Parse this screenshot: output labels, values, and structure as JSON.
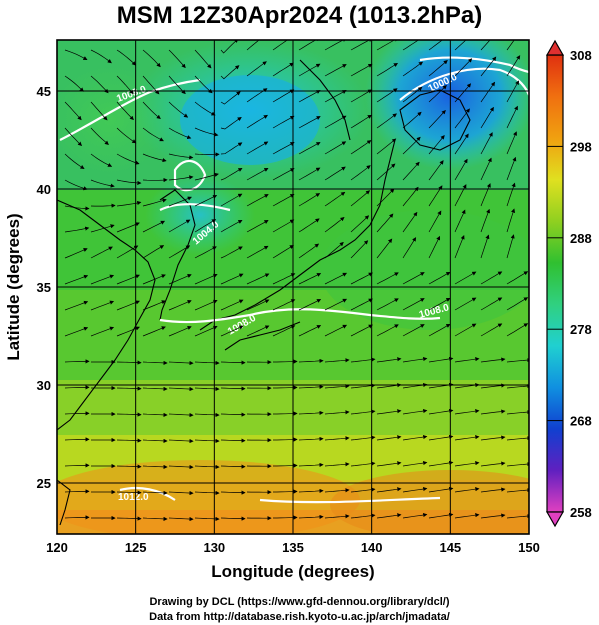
{
  "title": "MSM 12Z30Apr2024 (1013.2hPa)",
  "axes": {
    "xlabel": "Longitude (degrees)",
    "ylabel": "Latitude  (degrees)",
    "xticks": [
      120,
      125,
      130,
      135,
      140,
      145,
      150
    ],
    "yticks": [
      25,
      30,
      35,
      40,
      45
    ]
  },
  "chart_data": {
    "type": "heatmap",
    "title": "MSM 12Z30Apr2024 (1013.2hPa)",
    "xlabel": "Longitude (degrees)",
    "ylabel": "Latitude  (degrees)",
    "xlim": [
      120,
      150
    ],
    "ylim": [
      22.4,
      47.6
    ],
    "grid": true,
    "colorbar": {
      "min": 258,
      "max": 308,
      "ticks": [
        258,
        268,
        278,
        288,
        298,
        308
      ],
      "palette": [
        "#e040c0",
        "#6020c0",
        "#1040d0",
        "#1090e0",
        "#20d0d0",
        "#30d080",
        "#30c030",
        "#90d020",
        "#e0e020",
        "#f0a010",
        "#f07010",
        "#e03010"
      ]
    },
    "contour_labels": [
      "1008.0",
      "1000.0",
      "1004.0",
      "1008.0",
      "1008.0",
      "1012.0"
    ],
    "field": "temperature (K) with pressure contours and streamlines"
  },
  "footer": {
    "line1": "Drawing by DCL (https://www.gfd-dennou.org/library/dcl/)",
    "line2": "Data from http://database.rish.kyoto-u.ac.jp/arch/jmadata/"
  }
}
